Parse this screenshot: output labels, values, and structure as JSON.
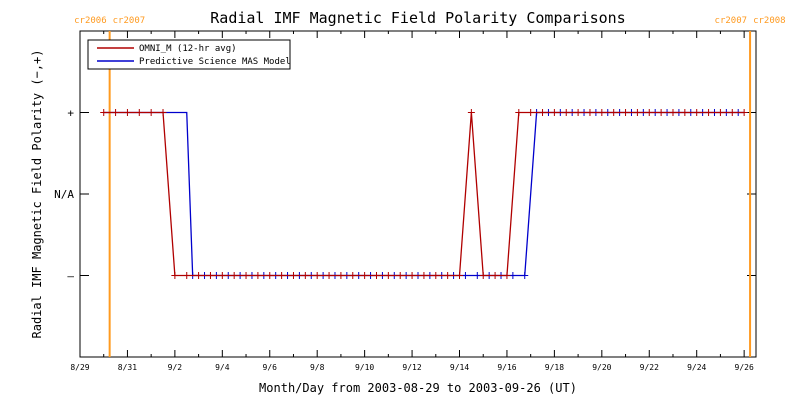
{
  "chart_data": {
    "type": "line",
    "title": "Radial IMF Magnetic Field Polarity Comparisons",
    "xlabel": "Month/Day from 2003-08-29 to 2003-09-26 (UT)",
    "ylabel": "Radial IMF Magnetic Field Polarity (−,+)",
    "xlim": [
      "2003-08-29 00:00",
      "2003-09-26 12:00"
    ],
    "ylim": [
      -2,
      2
    ],
    "yticks": [
      {
        "value": 1,
        "label": "+"
      },
      {
        "value": 0,
        "label": "N/A"
      },
      {
        "value": -1,
        "label": "–"
      }
    ],
    "xtick_values": [
      "2003-08-29",
      "2003-08-31",
      "2003-09-02",
      "2003-09-04",
      "2003-09-06",
      "2003-09-08",
      "2003-09-10",
      "2003-09-12",
      "2003-09-14",
      "2003-09-16",
      "2003-09-18",
      "2003-09-20",
      "2003-09-22",
      "2003-09-24",
      "2003-09-26"
    ],
    "xtick_labels": [
      "8/29",
      "8/31",
      "9/2",
      "9/4",
      "9/6",
      "9/8",
      "9/10",
      "9/12",
      "9/14",
      "9/16",
      "9/18",
      "9/20",
      "9/22",
      "9/24",
      "9/26"
    ],
    "legend_position": "top-left",
    "carrington_markers": [
      {
        "date": "2003-08-30 06:00",
        "labels": [
          "cr2006",
          "cr2007"
        ],
        "color": "#ff9a1f"
      },
      {
        "date": "2003-09-26 06:00",
        "labels": [
          "cr2007",
          "cr2008"
        ],
        "color": "#ff9a1f"
      }
    ],
    "series": [
      {
        "name": "OMNI_M (12-hr avg)",
        "color": "#b00000",
        "marker": "plus",
        "points": [
          [
            "2003-08-30 00:00",
            1
          ],
          [
            "2003-08-30 12:00",
            1
          ],
          [
            "2003-08-31 00:00",
            1
          ],
          [
            "2003-08-31 12:00",
            1
          ],
          [
            "2003-09-01 00:00",
            1
          ],
          [
            "2003-09-01 12:00",
            1
          ],
          [
            "2003-09-02 00:00",
            -1
          ],
          [
            "2003-09-02 12:00",
            -1
          ],
          [
            "2003-09-03 00:00",
            -1
          ],
          [
            "2003-09-03 12:00",
            -1
          ],
          [
            "2003-09-04 00:00",
            -1
          ],
          [
            "2003-09-04 12:00",
            -1
          ],
          [
            "2003-09-05 00:00",
            -1
          ],
          [
            "2003-09-05 12:00",
            -1
          ],
          [
            "2003-09-06 00:00",
            -1
          ],
          [
            "2003-09-06 12:00",
            -1
          ],
          [
            "2003-09-07 00:00",
            -1
          ],
          [
            "2003-09-07 12:00",
            -1
          ],
          [
            "2003-09-08 00:00",
            -1
          ],
          [
            "2003-09-08 12:00",
            -1
          ],
          [
            "2003-09-09 00:00",
            -1
          ],
          [
            "2003-09-09 12:00",
            -1
          ],
          [
            "2003-09-10 00:00",
            -1
          ],
          [
            "2003-09-10 12:00",
            -1
          ],
          [
            "2003-09-11 00:00",
            -1
          ],
          [
            "2003-09-11 12:00",
            -1
          ],
          [
            "2003-09-12 00:00",
            -1
          ],
          [
            "2003-09-12 12:00",
            -1
          ],
          [
            "2003-09-13 00:00",
            -1
          ],
          [
            "2003-09-13 12:00",
            -1
          ],
          [
            "2003-09-14 00:00",
            -1
          ],
          [
            "2003-09-14 12:00",
            1
          ],
          [
            "2003-09-15 00:00",
            -1
          ],
          [
            "2003-09-15 12:00",
            -1
          ],
          [
            "2003-09-16 00:00",
            -1
          ],
          [
            "2003-09-16 12:00",
            1
          ],
          [
            "2003-09-17 00:00",
            1
          ],
          [
            "2003-09-17 12:00",
            1
          ],
          [
            "2003-09-18 00:00",
            1
          ],
          [
            "2003-09-18 12:00",
            1
          ],
          [
            "2003-09-19 00:00",
            1
          ],
          [
            "2003-09-19 12:00",
            1
          ],
          [
            "2003-09-20 00:00",
            1
          ],
          [
            "2003-09-20 12:00",
            1
          ],
          [
            "2003-09-21 00:00",
            1
          ],
          [
            "2003-09-21 12:00",
            1
          ],
          [
            "2003-09-22 00:00",
            1
          ],
          [
            "2003-09-22 12:00",
            1
          ],
          [
            "2003-09-23 00:00",
            1
          ],
          [
            "2003-09-23 12:00",
            1
          ],
          [
            "2003-09-24 00:00",
            1
          ],
          [
            "2003-09-24 12:00",
            1
          ],
          [
            "2003-09-25 00:00",
            1
          ],
          [
            "2003-09-25 12:00",
            1
          ],
          [
            "2003-09-26 00:00",
            1
          ]
        ]
      },
      {
        "name": "Predictive Science MAS Model",
        "color": "#0000cc",
        "marker": "plus",
        "points": [
          [
            "2003-08-30 00:00",
            1
          ],
          [
            "2003-09-02 12:00",
            1
          ],
          [
            "2003-09-02 18:00",
            -1
          ],
          [
            "2003-09-16 18:00",
            -1
          ],
          [
            "2003-09-17 06:00",
            1
          ],
          [
            "2003-09-26 00:00",
            1
          ]
        ],
        "marker_points": [
          [
            "2003-09-02 18:00",
            -1
          ],
          [
            "2003-09-03 06:00",
            -1
          ],
          [
            "2003-09-03 18:00",
            -1
          ],
          [
            "2003-09-04 06:00",
            -1
          ],
          [
            "2003-09-04 18:00",
            -1
          ],
          [
            "2003-09-05 06:00",
            -1
          ],
          [
            "2003-09-05 18:00",
            -1
          ],
          [
            "2003-09-06 06:00",
            -1
          ],
          [
            "2003-09-06 18:00",
            -1
          ],
          [
            "2003-09-07 06:00",
            -1
          ],
          [
            "2003-09-07 18:00",
            -1
          ],
          [
            "2003-09-08 06:00",
            -1
          ],
          [
            "2003-09-08 18:00",
            -1
          ],
          [
            "2003-09-09 06:00",
            -1
          ],
          [
            "2003-09-09 18:00",
            -1
          ],
          [
            "2003-09-10 06:00",
            -1
          ],
          [
            "2003-09-10 18:00",
            -1
          ],
          [
            "2003-09-11 06:00",
            -1
          ],
          [
            "2003-09-11 18:00",
            -1
          ],
          [
            "2003-09-12 06:00",
            -1
          ],
          [
            "2003-09-12 18:00",
            -1
          ],
          [
            "2003-09-13 06:00",
            -1
          ],
          [
            "2003-09-13 18:00",
            -1
          ],
          [
            "2003-09-14 06:00",
            -1
          ],
          [
            "2003-09-14 18:00",
            -1
          ],
          [
            "2003-09-15 06:00",
            -1
          ],
          [
            "2003-09-15 18:00",
            -1
          ],
          [
            "2003-09-16 06:00",
            -1
          ],
          [
            "2003-09-16 18:00",
            -1
          ],
          [
            "2003-09-17 06:00",
            1
          ],
          [
            "2003-09-17 18:00",
            1
          ],
          [
            "2003-09-18 06:00",
            1
          ],
          [
            "2003-09-18 18:00",
            1
          ],
          [
            "2003-09-19 06:00",
            1
          ],
          [
            "2003-09-19 18:00",
            1
          ],
          [
            "2003-09-20 06:00",
            1
          ],
          [
            "2003-09-20 18:00",
            1
          ],
          [
            "2003-09-21 06:00",
            1
          ],
          [
            "2003-09-21 18:00",
            1
          ],
          [
            "2003-09-22 06:00",
            1
          ],
          [
            "2003-09-22 18:00",
            1
          ],
          [
            "2003-09-23 06:00",
            1
          ],
          [
            "2003-09-23 18:00",
            1
          ],
          [
            "2003-09-24 06:00",
            1
          ],
          [
            "2003-09-24 18:00",
            1
          ],
          [
            "2003-09-25 06:00",
            1
          ],
          [
            "2003-09-25 18:00",
            1
          ]
        ]
      }
    ]
  }
}
